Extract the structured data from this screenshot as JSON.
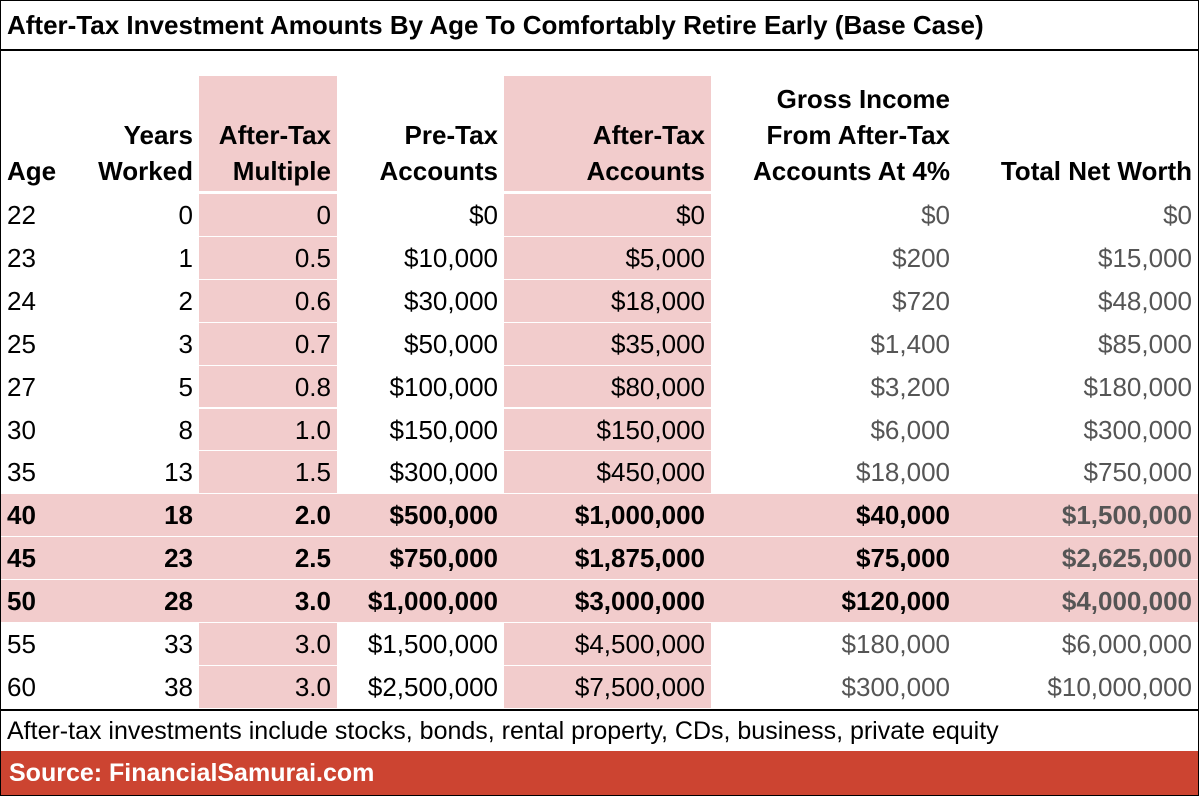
{
  "title": "After-Tax Investment Amounts By Age To Comfortably Retire Early (Base Case)",
  "table": {
    "header": [
      [
        "Age"
      ],
      [
        "Years",
        "Worked"
      ],
      [
        "After-Tax",
        "Multiple"
      ],
      [
        "Pre-Tax",
        "Accounts"
      ],
      [
        "After-Tax",
        "Accounts"
      ],
      [
        "Gross Income",
        "From After-Tax",
        "Accounts At 4%"
      ],
      [
        "Total Net Worth"
      ]
    ],
    "rows": [
      [
        "22",
        "0",
        "0",
        "$0",
        "$0",
        "$0",
        "$0"
      ],
      [
        "23",
        "1",
        "0.5",
        "$10,000",
        "$5,000",
        "$200",
        "$15,000"
      ],
      [
        "24",
        "2",
        "0.6",
        "$30,000",
        "$18,000",
        "$720",
        "$48,000"
      ],
      [
        "25",
        "3",
        "0.7",
        "$50,000",
        "$35,000",
        "$1,400",
        "$85,000"
      ],
      [
        "27",
        "5",
        "0.8",
        "$100,000",
        "$80,000",
        "$3,200",
        "$180,000"
      ],
      [
        "30",
        "8",
        "1.0",
        "$150,000",
        "$150,000",
        "$6,000",
        "$300,000"
      ],
      [
        "35",
        "13",
        "1.5",
        "$300,000",
        "$450,000",
        "$18,000",
        "$750,000"
      ],
      [
        "40",
        "18",
        "2.0",
        "$500,000",
        "$1,000,000",
        "$40,000",
        "$1,500,000"
      ],
      [
        "45",
        "23",
        "2.5",
        "$750,000",
        "$1,875,000",
        "$75,000",
        "$2,625,000"
      ],
      [
        "50",
        "28",
        "3.0",
        "$1,000,000",
        "$3,000,000",
        "$120,000",
        "$4,000,000"
      ],
      [
        "55",
        "33",
        "3.0",
        "$1,500,000",
        "$4,500,000",
        "$180,000",
        "$6,000,000"
      ],
      [
        "60",
        "38",
        "3.0",
        "$2,500,000",
        "$7,500,000",
        "$300,000",
        "$10,000,000"
      ]
    ],
    "highlighted_rows": [
      7,
      8,
      9
    ],
    "highlighted_columns": [
      2,
      4
    ]
  },
  "note": "After-tax investments include stocks, bonds, rental property, CDs, business, private equity",
  "source": "Source: FinancialSamurai.com"
}
